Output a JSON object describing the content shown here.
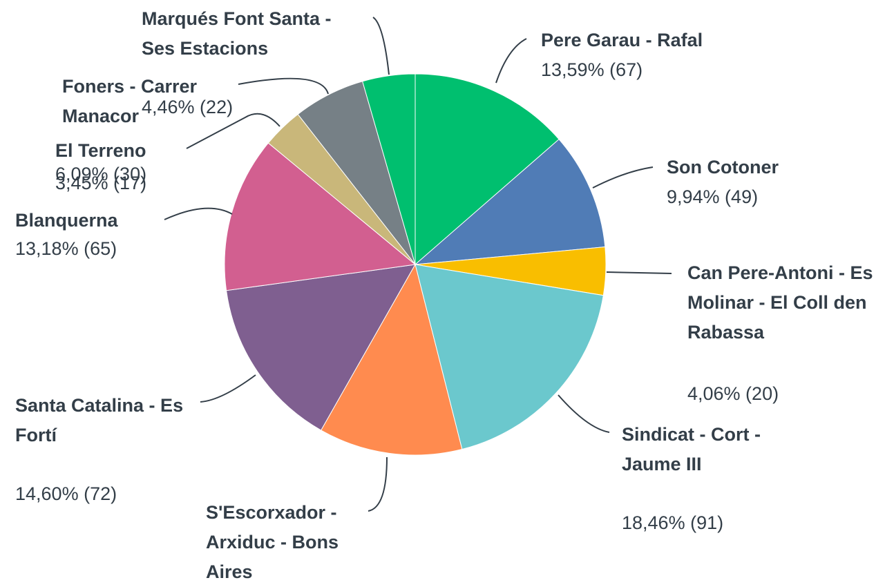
{
  "chart_data": {
    "type": "pie",
    "categories": [
      "Pere Garau - Rafal",
      "Son Cotoner",
      "Can Pere-Antoni - Es Molinar - El Coll den Rabassa",
      "Sindicat - Cort - Jaume III",
      "S'Escorxador - Arxiduc - Bons Aires",
      "Santa Catalina - Es Fortí",
      "Blanquerna",
      "El Terreno",
      "Foners - Carrer Manacor",
      "Marqués Font Santa - Ses Estacions"
    ],
    "values": [
      13.59,
      9.94,
      4.06,
      18.46,
      12.17,
      14.6,
      13.18,
      3.45,
      6.09,
      4.46
    ],
    "value_labels": [
      "13,59% (67)",
      "9,94% (49)",
      "4,06% (20)",
      "18,46% (91)",
      null,
      "14,60% (72)",
      "13,18% (65)",
      "3,45% (17)",
      "6,09% (30)",
      "4,46% (22)"
    ],
    "colors": [
      "#00bf6f",
      "#507cb6",
      "#f9be00",
      "#6bc8cd",
      "#ff8b4f",
      "#7f5f90",
      "#d25f90",
      "#c9b77a",
      "#768086",
      "#00bf6f"
    ]
  }
}
